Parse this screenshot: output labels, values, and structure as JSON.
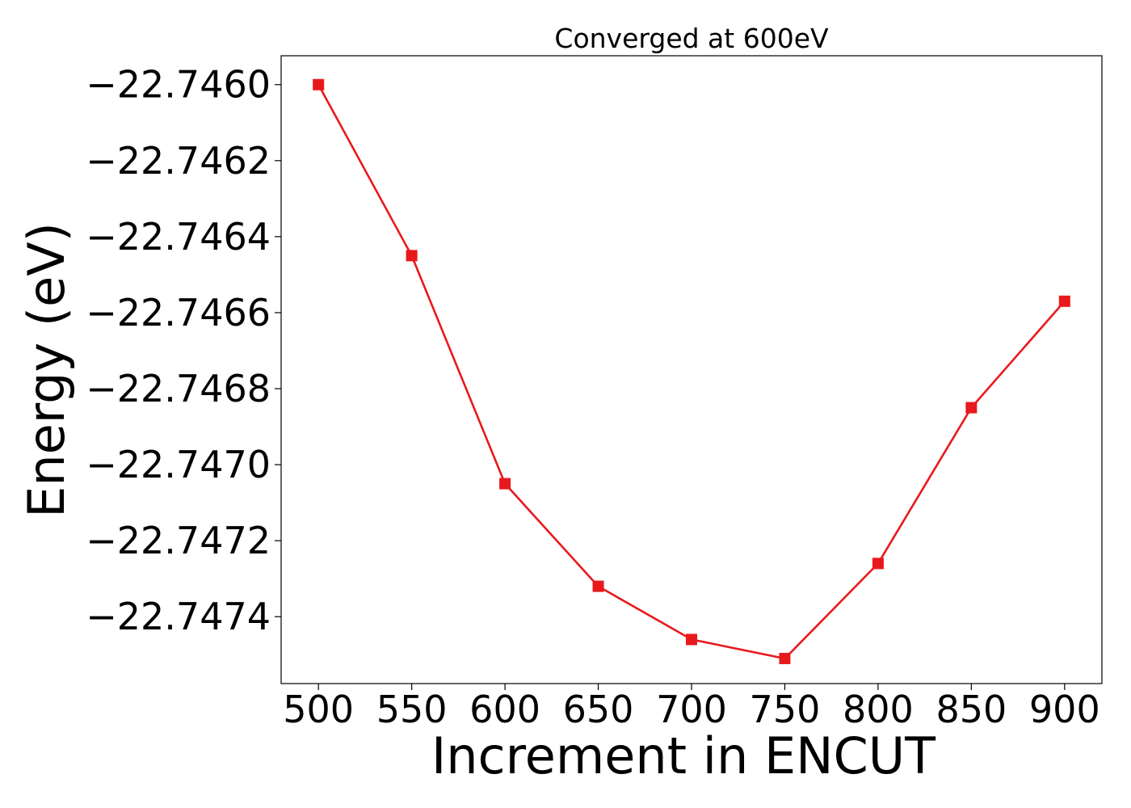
{
  "chart_data": {
    "type": "line",
    "title": "Converged at 600eV",
    "xlabel": "Increment in ENCUT",
    "ylabel": "Energy (eV)",
    "x": [
      500,
      550,
      600,
      650,
      700,
      750,
      800,
      850,
      900
    ],
    "series": [
      {
        "values": [
          -22.746,
          -22.74645,
          -22.74705,
          -22.74732,
          -22.74746,
          -22.74751,
          -22.74726,
          -22.74685,
          -22.74657
        ],
        "color": "#e8191c",
        "marker": "square"
      }
    ],
    "xticks": [
      500,
      550,
      600,
      650,
      700,
      750,
      800,
      850,
      900
    ],
    "xtick_labels": [
      "500",
      "550",
      "600",
      "650",
      "700",
      "750",
      "800",
      "850",
      "900"
    ],
    "yticks": [
      -22.746,
      -22.7462,
      -22.7464,
      -22.7466,
      -22.7468,
      -22.747,
      -22.7472,
      -22.7474
    ],
    "ytick_labels": [
      "−22.7460",
      "−22.7462",
      "−22.7464",
      "−22.7466",
      "−22.7468",
      "−22.7470",
      "−22.7472",
      "−22.7474"
    ],
    "xlim": [
      480,
      920
    ],
    "ylim": [
      -22.747576,
      -22.745924
    ],
    "grid": false,
    "legend": "none"
  }
}
